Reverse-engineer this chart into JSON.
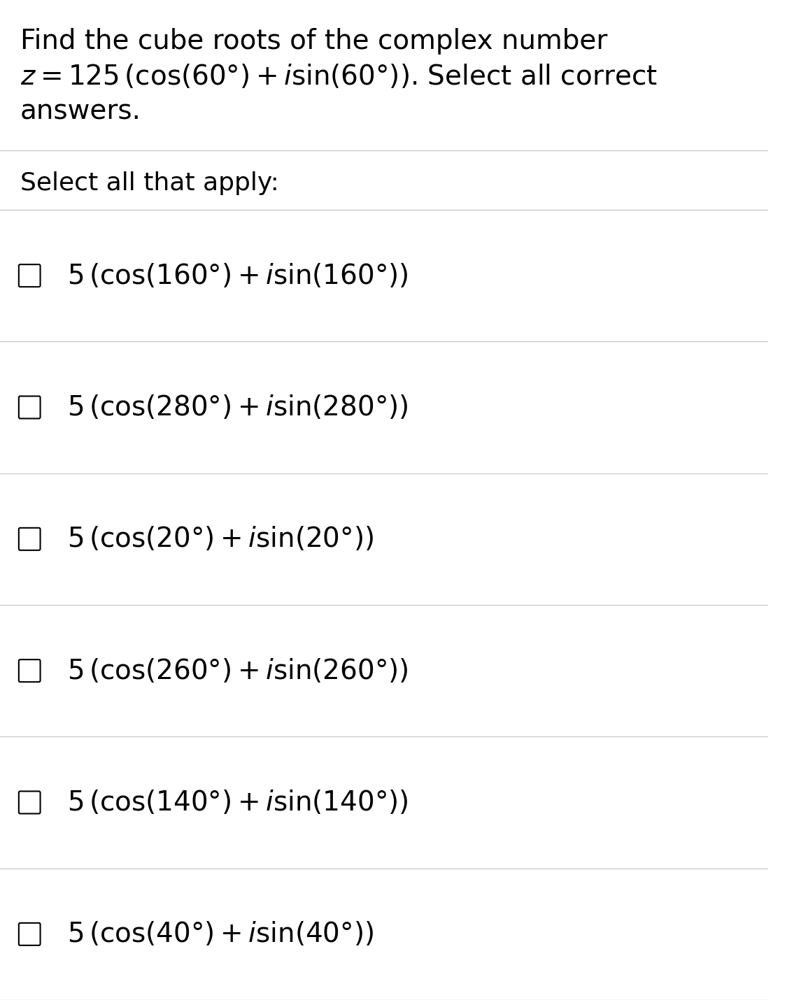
{
  "background_color": "#ffffff",
  "title_lines": [
    "Find the cube roots of the complex number",
    "$z = 125\\,(\\cos(60°) + i\\sin(60°))$. Select all correct",
    "answers."
  ],
  "section_label": "Select all that apply:",
  "options": [
    "5 (cos(160°) + $i$ sin(160°))",
    "5 (cos(280°) + $i$ sin(280°))",
    "5 (cos(20°) + $i$ sin(20°))",
    "5 (cos(260°) + $i$ sin(260°))",
    "5 (cos(140°) + $i$ sin(140°))",
    "5 (cos(40°) + $i$ sin(40°))"
  ],
  "option_math": [
    "$5\\,(\\cos(160°) + i\\sin(160°))$",
    "$5\\,(\\cos(280°) + i\\sin(280°))$",
    "$5\\,(\\cos(20°) + i\\sin(20°))$",
    "$5\\,(\\cos(260°) + i\\sin(260°))$",
    "$5\\,(\\cos(140°) + i\\sin(140°))$",
    "$5\\,(\\cos(40°) + i\\sin(40°))$"
  ],
  "line_color": "#cccccc",
  "text_color": "#000000",
  "checkbox_color": "#000000",
  "title_fontsize": 28,
  "section_fontsize": 26,
  "option_fontsize": 28,
  "checkbox_size": 22
}
